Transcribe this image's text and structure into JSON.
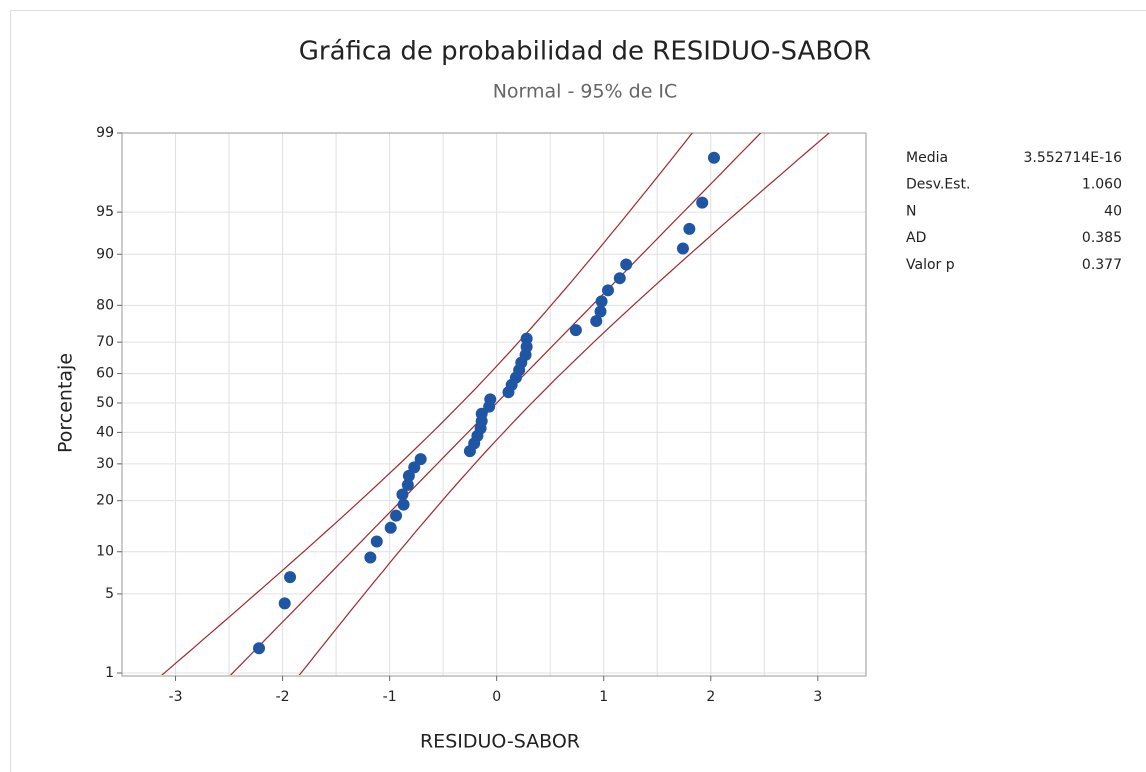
{
  "chart_data": {
    "type": "probability",
    "title": "Gráfica de probabilidad de RESIDUO-SABOR",
    "subtitle": "Normal - 95% de IC",
    "x_label": "RESIDUO-SABOR",
    "y_label": "Porcentaje",
    "y_scale": "normal",
    "xlim": [
      -3.5,
      3.45
    ],
    "xticks": [
      -3,
      -2,
      -1,
      0,
      1,
      2,
      3
    ],
    "xgrid": [
      -3,
      -2.5,
      -2,
      -1.5,
      -1,
      -0.5,
      0,
      0.5,
      1,
      1.5,
      2,
      2.5,
      3
    ],
    "ylim": [
      1,
      99
    ],
    "yticks": [
      1,
      5,
      10,
      20,
      30,
      40,
      50,
      60,
      70,
      80,
      90,
      95,
      99
    ],
    "grid": true,
    "point_color": "#1f56a3",
    "line_color": "#a3282c",
    "x": [
      -2.22,
      -1.98,
      -1.93,
      -1.18,
      -1.12,
      -0.99,
      -0.94,
      -0.87,
      -0.88,
      -0.83,
      -0.82,
      -0.77,
      -0.71,
      -0.25,
      -0.21,
      -0.18,
      -0.15,
      -0.14,
      -0.14,
      -0.07,
      -0.06,
      0.11,
      0.14,
      0.18,
      0.21,
      0.23,
      0.27,
      0.28,
      0.28,
      0.74,
      0.93,
      0.97,
      0.98,
      1.04,
      1.15,
      1.21,
      1.74,
      1.8,
      1.92,
      2.03
    ],
    "values": [
      1.73,
      4.21,
      6.68,
      9.16,
      11.63,
      14.11,
      16.58,
      19.06,
      21.53,
      24.01,
      26.49,
      28.96,
      31.44,
      33.91,
      36.39,
      38.86,
      41.34,
      43.81,
      46.29,
      48.76,
      51.24,
      53.71,
      56.19,
      58.66,
      61.14,
      63.61,
      66.09,
      68.56,
      71.04,
      73.51,
      75.99,
      78.47,
      80.94,
      83.42,
      85.89,
      88.37,
      90.84,
      93.32,
      95.79,
      98.27
    ],
    "stats": [
      {
        "label": "Media",
        "value": "3.552714E-16"
      },
      {
        "label": "Desv.Est.",
        "value": "1.060"
      },
      {
        "label": "N",
        "value": "40"
      },
      {
        "label": "AD",
        "value": "0.385"
      },
      {
        "label": "Valor p",
        "value": "0.377"
      }
    ]
  }
}
